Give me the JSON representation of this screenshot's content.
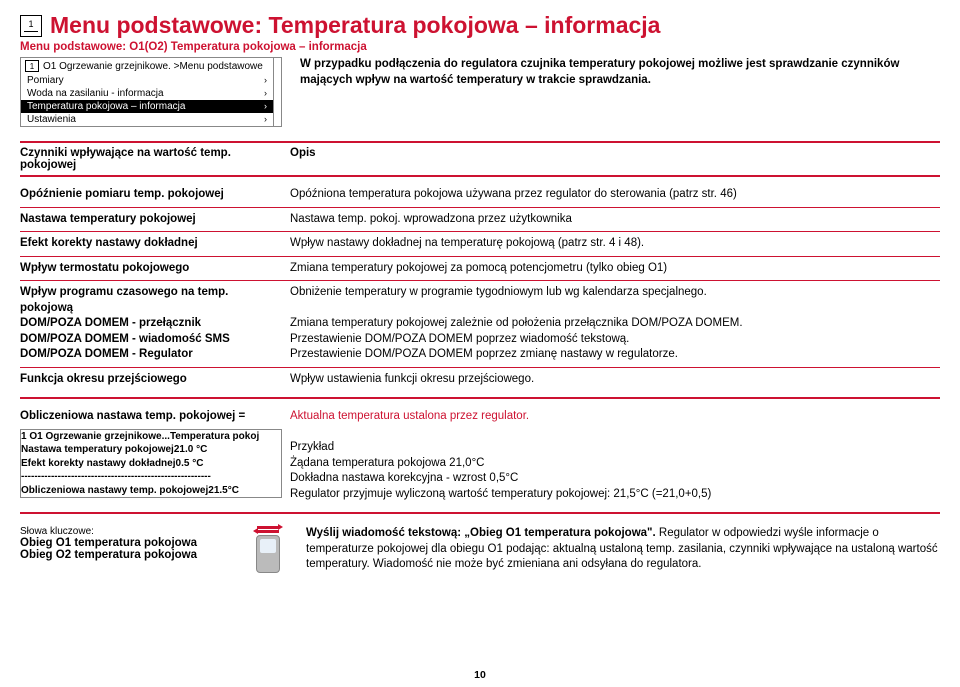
{
  "header": {
    "icon_number": "1",
    "title": "Menu podstawowe: Temperatura pokojowa – informacja",
    "subtitle": "Menu podstawowe: O1(O2) Temperatura pokojowa – informacja"
  },
  "menu1": {
    "header": "O1 Ogrzewanie grzejnikowe. >Menu podstawowe",
    "row1": "Pomiary",
    "row2": "Woda na zasilaniu - informacja",
    "row3": "Temperatura pokojowa – informacja",
    "row4": "Ustawienia"
  },
  "intro": "W przypadku podłączenia do regulatora czujnika temperatury pokojowej możliwe jest sprawdzanie czynników mających wpływ na wartość temperatury w trakcie sprawdzania.",
  "th": {
    "c1": "Czynniki wpływające na wartość temp. pokojowej",
    "c2": "Opis"
  },
  "r1": {
    "c1": "Opóźnienie pomiaru temp. pokojowej",
    "c2": "Opóźniona temperatura pokojowa używana przez regulator do sterowania (patrz str. 46)"
  },
  "r2": {
    "c1": "Nastawa temperatury pokojowej",
    "c2": "Nastawa temp. pokoj. wprowadzona przez użytkownika"
  },
  "r3": {
    "c1": "Efekt korekty nastawy dokładnej",
    "c2": "Wpływ nastawy dokładnej na temperaturę pokojową (patrz str. 4 i 48)."
  },
  "r4": {
    "c1": "Wpływ termostatu pokojowego",
    "c2": "Zmiana temperatury pokojowej za pomocą potencjometru (tylko obieg O1)"
  },
  "r5": {
    "c1a": "Wpływ programu czasowego na temp. pokojową",
    "c1b": "DOM/POZA DOMEM - przełącznik",
    "c1c": "DOM/POZA DOMEM - wiadomość SMS",
    "c1d": "DOM/POZA DOMEM - Regulator",
    "c2a": "Obniżenie temperatury w programie tygodniowym lub wg kalendarza specjalnego.",
    "c2b": "Zmiana temperatury pokojowej zależnie od położenia przełącznika DOM/POZA DOMEM.",
    "c2c": "Przestawienie DOM/POZA DOMEM poprzez wiadomość tekstową.",
    "c2d": "Przestawienie DOM/POZA DOMEM poprzez zmianę nastawy w regulatorze."
  },
  "r6": {
    "c1": "Funkcja okresu przejściowego",
    "c2": "Wpływ ustawienia funkcji okresu przejściowego."
  },
  "r7": {
    "c1": "Obliczeniowa nastawa temp. pokojowej =",
    "c2": "Aktualna temperatura ustalona przez regulator."
  },
  "menu2": {
    "header": "O1 Ogrzewanie grzejnikowe...Temperatura pokoj",
    "row1_l": "Nastawa temperatury pokojowej",
    "row1_r": "21.0 °C",
    "row2_l": "Efekt korekty nastawy dokładnej",
    "row2_r": "0.5 °C",
    "row3": "---------------------------------------------------------",
    "row4_l": "Obliczeniowa nastawy temp. pokojowej",
    "row4_r": "21.5°C"
  },
  "example": {
    "title": "Przykład",
    "l1": "Żądana temperatura pokojowa  21,0°C",
    "l2": "Dokładna nastawa korekcyjna - wzrost  0,5°C",
    "l3": "Regulator przyjmuje wyliczoną wartość temperatury pokojowej: 21,5°C (=21,0+0,5)"
  },
  "keywords": {
    "label": "Słowa kluczowe:",
    "k1": "Obieg O1 temperatura pokojowa",
    "k2": "Obieg O2 temperatura pokojowa"
  },
  "sms": {
    "bold": "Wyślij wiadomość tekstową: „Obieg O1 temperatura pokojowa\".",
    "rest": " Regulator w odpowiedzi wyśle informacje o temperaturze pokojowej dla obiegu O1 podając: aktualną ustaloną temp. zasilania, czynniki wpływające na ustaloną wartość temperatury. Wiadomość nie może być zmieniana ani odsyłana do regulatora."
  },
  "page": "10"
}
